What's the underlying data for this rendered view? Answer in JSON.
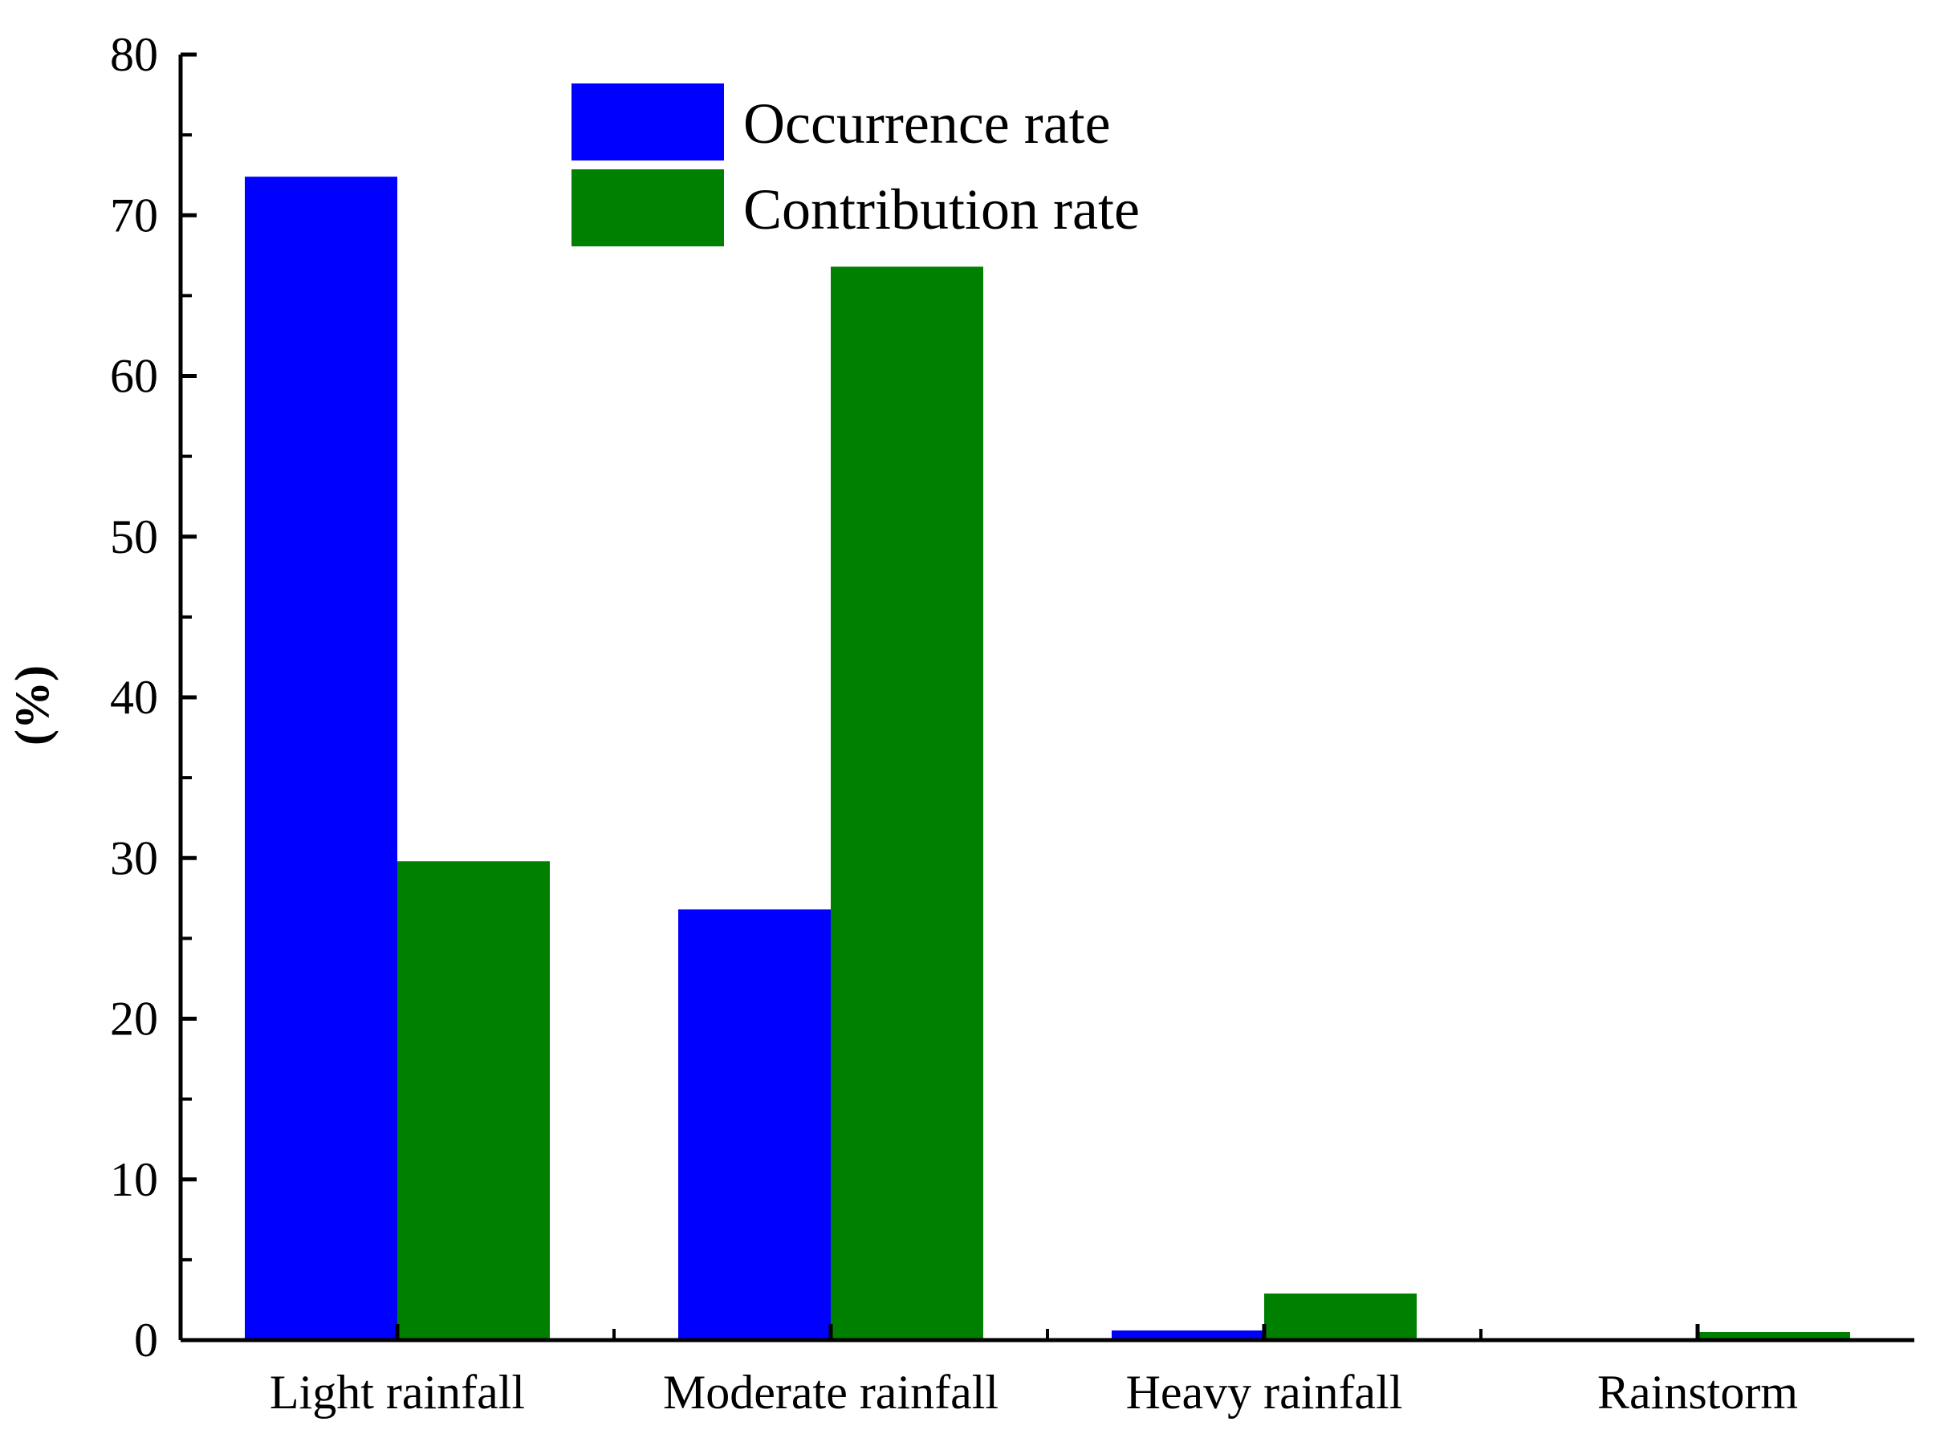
{
  "chart_data": {
    "type": "bar",
    "categories": [
      "Light rainfall",
      "Moderate rainfall",
      "Heavy rainfall",
      "Rainstorm"
    ],
    "series": [
      {
        "name": "Occurrence rate",
        "color": "#0000ff",
        "values": [
          72.4,
          26.8,
          0.6,
          0.0
        ]
      },
      {
        "name": "Contribution rate",
        "color": "#008000",
        "values": [
          29.8,
          66.8,
          2.9,
          0.5
        ]
      }
    ],
    "ylabel": "(%)",
    "xlabel": "",
    "ylim": [
      0,
      80
    ],
    "yticks": [
      0,
      10,
      20,
      30,
      40,
      50,
      60,
      70,
      80
    ],
    "grid": false,
    "legend_position": "top-center"
  }
}
